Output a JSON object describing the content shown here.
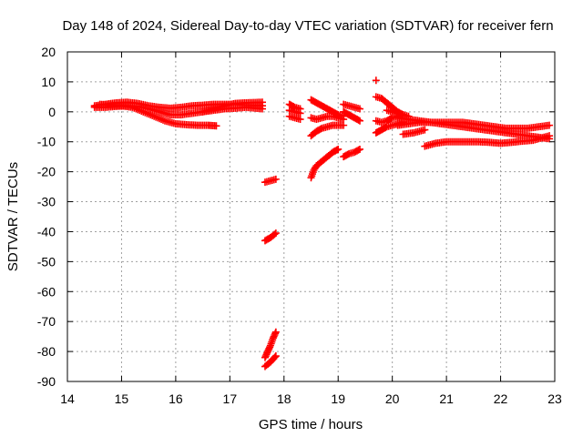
{
  "chart_data": {
    "type": "scatter",
    "title": "Day 148 of 2024, Sidereal Day-to-day VTEC variation (SDTVAR) for receiver fern",
    "xlabel": "GPS time / hours",
    "ylabel": "SDTVAR / TECUs",
    "xlim": [
      14,
      23
    ],
    "ylim": [
      -90,
      20
    ],
    "xticks": [
      14,
      15,
      16,
      17,
      18,
      19,
      20,
      21,
      22,
      23
    ],
    "yticks": [
      20,
      10,
      0,
      -10,
      -20,
      -30,
      -40,
      -50,
      -60,
      -70,
      -80,
      -90
    ],
    "grid": true,
    "marker": "+",
    "marker_color": "#ff0000",
    "series": [
      {
        "x": [
          14.5,
          14.7,
          14.9,
          15.1,
          15.3,
          15.5,
          15.7,
          15.9,
          16.1,
          16.3,
          16.5,
          16.7,
          16.9,
          17.1,
          17.3,
          17.6
        ],
        "y": [
          2,
          2.5,
          3,
          3.2,
          2.8,
          2,
          1.5,
          1.2,
          1.5,
          2,
          2.2,
          2.5,
          2.5,
          2.5,
          2.2,
          2
        ]
      },
      {
        "x": [
          14.5,
          14.7,
          14.9,
          15.1,
          15.3,
          15.5,
          15.7,
          15.9,
          16.1,
          16.3,
          16.5,
          16.7,
          16.9,
          17.1,
          17.3,
          17.6
        ],
        "y": [
          1.5,
          1.5,
          1.8,
          2,
          1.8,
          1,
          0,
          -1,
          -1,
          -0.5,
          0,
          0.5,
          1,
          1.2,
          1.5,
          1
        ]
      },
      {
        "x": [
          14.6,
          14.8,
          15.0,
          15.2,
          15.4,
          15.6,
          15.8,
          16.0,
          16.2,
          16.4,
          16.6,
          16.75
        ],
        "y": [
          2.5,
          2.2,
          2,
          1.5,
          0,
          -1.5,
          -3,
          -4,
          -4.3,
          -4.5,
          -4.5,
          -4.7
        ]
      },
      {
        "x": [
          16.5,
          16.7,
          16.9,
          17.1,
          17.3,
          17.6
        ],
        "y": [
          0,
          1,
          2,
          2.8,
          3,
          3.2
        ]
      },
      {
        "x": [
          17.65,
          17.75,
          17.85
        ],
        "y": [
          -23.5,
          -23,
          -22.5
        ]
      },
      {
        "x": [
          17.65,
          17.75,
          17.85
        ],
        "y": [
          -43,
          -42,
          -40.5
        ]
      },
      {
        "x": [
          17.65,
          17.7,
          17.75,
          17.8,
          17.85
        ],
        "y": [
          -82,
          -80,
          -78,
          -75.5,
          -73.5
        ]
      },
      {
        "x": [
          17.65,
          17.75,
          17.85
        ],
        "y": [
          -85,
          -83.5,
          -81.5
        ]
      },
      {
        "x": [
          18.1,
          18.15,
          18.2,
          18.3
        ],
        "y": [
          2.5,
          2,
          1.5,
          1
        ]
      },
      {
        "x": [
          18.1,
          18.2,
          18.3
        ],
        "y": [
          -1.5,
          -2,
          -2.5
        ]
      },
      {
        "x": [
          18.1,
          18.2,
          18.3
        ],
        "y": [
          0.5,
          0,
          -0.5
        ]
      },
      {
        "x": [
          18.5,
          18.6,
          18.7,
          18.8,
          18.9,
          19.0,
          19.1
        ],
        "y": [
          4,
          3,
          2,
          1,
          0,
          -1,
          -1.5
        ]
      },
      {
        "x": [
          18.5,
          18.6,
          18.7,
          18.8,
          18.9,
          19.0,
          19.1
        ],
        "y": [
          -8,
          -6.5,
          -5.5,
          -5,
          -4.5,
          -4.5,
          -4.5
        ]
      },
      {
        "x": [
          18.5,
          18.6,
          18.7,
          18.8,
          18.9,
          19.0,
          19.1
        ],
        "y": [
          -2,
          -2.5,
          -2,
          -1.5,
          -1.5,
          -2,
          -2.5
        ]
      },
      {
        "x": [
          18.5,
          18.55,
          18.6,
          18.7,
          18.8,
          18.9,
          19.0
        ],
        "y": [
          -22,
          -19.5,
          -18,
          -16.5,
          -15,
          -13.5,
          -12.5
        ]
      },
      {
        "x": [
          19.1,
          19.2,
          19.3,
          19.4
        ],
        "y": [
          2.5,
          2,
          1.5,
          1
        ]
      },
      {
        "x": [
          19.1,
          19.2,
          19.3,
          19.4
        ],
        "y": [
          0,
          -1,
          -2,
          -3
        ]
      },
      {
        "x": [
          19.1,
          19.2,
          19.3,
          19.4
        ],
        "y": [
          -15,
          -14,
          -13.5,
          -12.5
        ]
      },
      {
        "x": [
          19.7
        ],
        "y": [
          10.5
        ]
      },
      {
        "x": [
          19.7,
          19.8,
          19.9,
          20.0,
          20.1,
          20.2
        ],
        "y": [
          5,
          4.5,
          3,
          1.5,
          0,
          -1
        ]
      },
      {
        "x": [
          19.7,
          19.8,
          19.9,
          20.0,
          20.1,
          20.2
        ],
        "y": [
          -3,
          -3.5,
          -3,
          -2,
          -1.5,
          -1
        ]
      },
      {
        "x": [
          19.7,
          19.8,
          19.9,
          20.0,
          20.1,
          20.2
        ],
        "y": [
          -7,
          -6,
          -5,
          -4.5,
          -4,
          -3.5
        ]
      },
      {
        "x": [
          19.9,
          20.0,
          20.1,
          20.2,
          20.3
        ],
        "y": [
          0.5,
          0,
          -0.5,
          -1,
          -1.5
        ]
      },
      {
        "x": [
          20.1,
          20.3,
          20.5,
          20.7,
          20.9,
          21.1,
          21.3,
          21.5,
          21.7,
          21.9,
          22.1,
          22.3,
          22.5,
          22.7,
          22.9
        ],
        "y": [
          -2,
          -2.5,
          -3,
          -3.5,
          -4,
          -4.5,
          -5,
          -5.5,
          -6,
          -6.5,
          -7,
          -7.5,
          -8,
          -8.5,
          -9
        ]
      },
      {
        "x": [
          20.1,
          20.3,
          20.5,
          20.7,
          20.9,
          21.1,
          21.3,
          21.5,
          21.7,
          21.9,
          22.1,
          22.3,
          22.5,
          22.7,
          22.9
        ],
        "y": [
          -4.5,
          -4,
          -3.5,
          -3.5,
          -3.5,
          -3.5,
          -3.5,
          -4,
          -4.5,
          -5,
          -5.5,
          -5.5,
          -5.5,
          -5,
          -4.5
        ]
      },
      {
        "x": [
          20.6,
          20.8,
          21.0,
          21.2,
          21.4,
          21.6,
          21.8,
          22.0,
          22.2,
          22.4,
          22.6,
          22.8,
          22.9
        ],
        "y": [
          -11.5,
          -10.5,
          -10,
          -10,
          -10,
          -10,
          -10.2,
          -10.5,
          -10.2,
          -9.8,
          -9.5,
          -8.5,
          -8
        ]
      },
      {
        "x": [
          20.2,
          20.4,
          20.6
        ],
        "y": [
          -7.5,
          -7,
          -6
        ]
      }
    ]
  }
}
